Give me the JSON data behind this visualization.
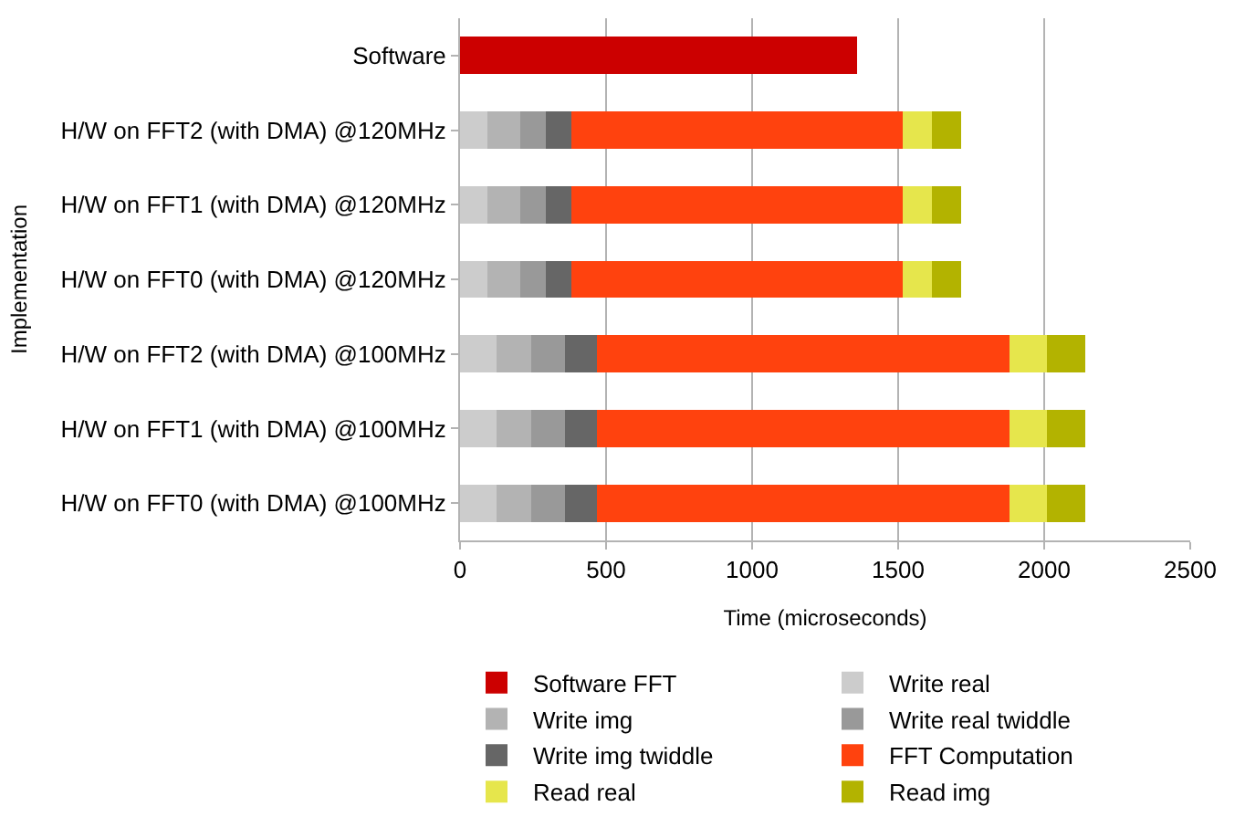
{
  "chart_data": {
    "type": "bar",
    "orientation": "horizontal",
    "stacked": true,
    "xlabel": "Time (microseconds)",
    "ylabel": "Implementation",
    "categories": [
      "Software",
      "H/W on FFT2 (with DMA) @120MHz",
      "H/W on FFT1 (with DMA) @120MHz",
      "H/W on FFT0 (with DMA) @120MHz",
      "H/W on FFT2 (with DMA) @100MHz",
      "H/W on FFT1 (with DMA) @100MHz",
      "H/W on FFT0 (with DMA) @100MHz"
    ],
    "series": [
      {
        "name": "Software FFT",
        "color": "#cc0000",
        "values": [
          1360,
          null,
          null,
          null,
          null,
          null,
          null
        ]
      },
      {
        "name": "Write real",
        "color": "#cccccc",
        "values": [
          null,
          95,
          95,
          95,
          125,
          125,
          125
        ]
      },
      {
        "name": "Write img",
        "color": "#b3b3b3",
        "values": [
          null,
          110,
          110,
          110,
          120,
          120,
          120
        ]
      },
      {
        "name": "Write real twiddle",
        "color": "#999999",
        "values": [
          null,
          90,
          90,
          90,
          115,
          115,
          115
        ]
      },
      {
        "name": "Write img twiddle",
        "color": "#666666",
        "values": [
          null,
          85,
          85,
          85,
          110,
          110,
          110
        ]
      },
      {
        "name": "FFT Computation",
        "color": "#ff420e",
        "values": [
          null,
          1135,
          1135,
          1135,
          1410,
          1410,
          1410
        ]
      },
      {
        "name": "Read real",
        "color": "#e6e64c",
        "values": [
          null,
          100,
          100,
          100,
          130,
          130,
          130
        ]
      },
      {
        "name": "Read img",
        "color": "#b3b300",
        "values": [
          null,
          100,
          100,
          100,
          130,
          130,
          130
        ]
      }
    ],
    "xlim": [
      0,
      2500
    ],
    "xticks": [
      0,
      500,
      1000,
      1500,
      2000,
      2500
    ],
    "grid": "x",
    "legend": "bottom"
  }
}
